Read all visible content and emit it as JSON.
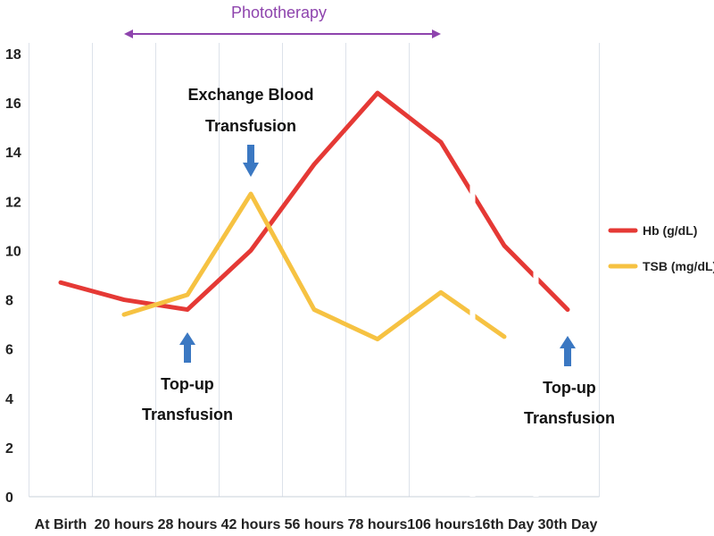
{
  "chart_data": {
    "type": "line",
    "categories": [
      "At Birth",
      "20 hours",
      "28 hours",
      "42 hours",
      "56 hours",
      "78 hours",
      "106 hours",
      "16th Day",
      "30th Day"
    ],
    "ylim": [
      0,
      18
    ],
    "yticks": [
      0,
      2,
      4,
      6,
      8,
      10,
      12,
      14,
      16,
      18
    ],
    "grid": "vertical",
    "legend_position": "right",
    "series": [
      {
        "name": "Hb (g/dL)",
        "color": "#e53935",
        "values": [
          8.7,
          8.0,
          7.6,
          10.0,
          13.5,
          16.4,
          14.4,
          10.2,
          7.6
        ]
      },
      {
        "name": "TSB (mg/dL)",
        "color": "#f6c242",
        "values": [
          null,
          7.4,
          8.2,
          12.3,
          7.6,
          6.4,
          8.3,
          6.5,
          null
        ]
      }
    ],
    "annotations": [
      {
        "id": "phototherapy",
        "text": "Phototherapy",
        "from_category": 1,
        "to_category": 6,
        "color": "#8e44ad"
      },
      {
        "id": "exchange",
        "lines": [
          "Exchange Blood",
          "Transfusion"
        ],
        "category": 3,
        "arrow": "down",
        "arrow_color": "#3b78c2"
      },
      {
        "id": "topup1",
        "lines": [
          "Top-up",
          "Transfusion"
        ],
        "category": 2,
        "arrow": "up",
        "arrow_color": "#3b78c2"
      },
      {
        "id": "topup2",
        "lines": [
          "Top-up",
          "Transfusion"
        ],
        "category": 8,
        "arrow": "up",
        "arrow_color": "#3b78c2"
      }
    ]
  }
}
